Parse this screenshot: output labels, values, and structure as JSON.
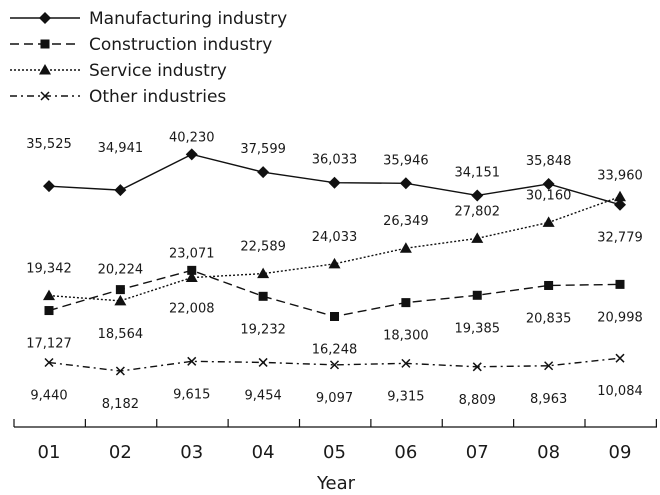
{
  "chart_data": {
    "type": "line",
    "title": "",
    "xlabel": "Year",
    "ylabel": "",
    "categories": [
      "01",
      "02",
      "03",
      "04",
      "05",
      "06",
      "07",
      "08",
      "09"
    ],
    "grid": false,
    "legend_position": "top-left",
    "series": [
      {
        "name": "Manufacturing industry",
        "marker": "diamond",
        "line_style": "solid",
        "values": [
          35525,
          34941,
          40230,
          37599,
          36033,
          35946,
          34151,
          35848,
          32779
        ],
        "value_labels": [
          "35,525",
          "34,941",
          "40,230",
          "37,599",
          "36,033",
          "35,946",
          "34,151",
          "35,848",
          "32,779"
        ]
      },
      {
        "name": "Construction industry",
        "marker": "square",
        "line_style": "dashed",
        "values": [
          17127,
          20224,
          23071,
          19232,
          16248,
          18300,
          19385,
          20835,
          20998
        ],
        "value_labels": [
          "17,127",
          "20,224",
          "23,071",
          "19,232",
          "16,248",
          "18,300",
          "19,385",
          "20,835",
          "20,998"
        ]
      },
      {
        "name": "Service industry",
        "marker": "triangle",
        "line_style": "dotted",
        "values": [
          19342,
          18564,
          22008,
          22589,
          24033,
          26349,
          27802,
          30160,
          33960
        ],
        "value_labels": [
          "19,342",
          "18,564",
          "22,008",
          "22,589",
          "24,033",
          "26,349",
          "27,802",
          "30,160",
          "33,960"
        ]
      },
      {
        "name": "Other industries",
        "marker": "x",
        "line_style": "dash-dot",
        "values": [
          9440,
          8182,
          9615,
          9454,
          9097,
          9315,
          8809,
          8963,
          10084
        ],
        "value_labels": [
          "9,440",
          "8,182",
          "9,615",
          "9,454",
          "9,097",
          "9,315",
          "8,809",
          "8,963",
          "10,084"
        ]
      }
    ]
  }
}
